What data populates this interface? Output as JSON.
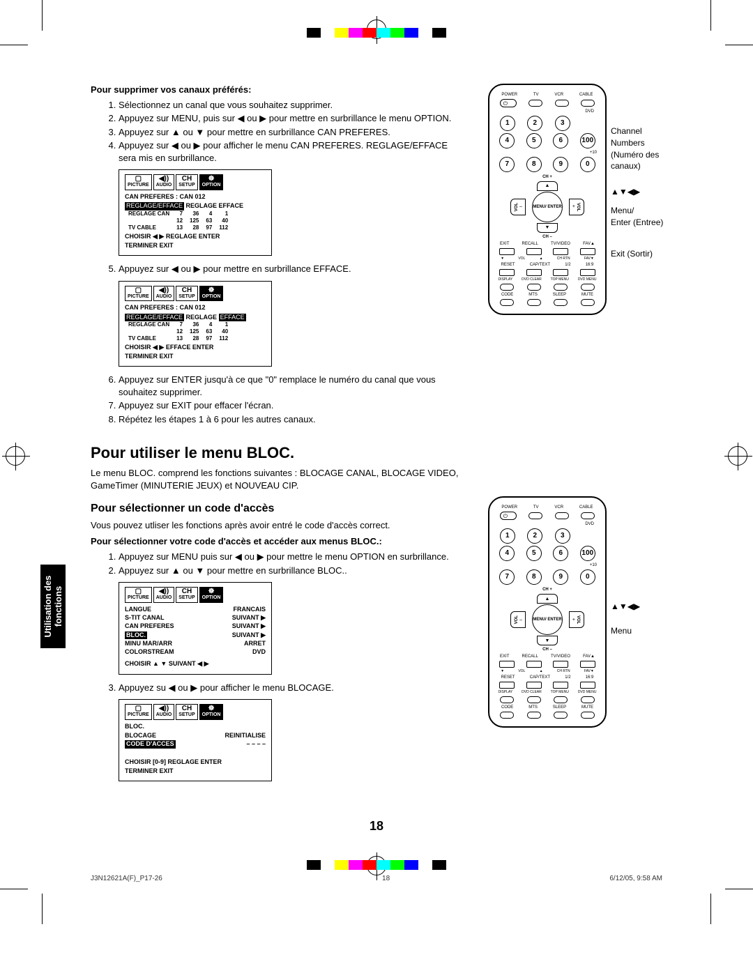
{
  "colorbar": [
    "#000000",
    "#ffffff",
    "#ffff00",
    "#ff00ff",
    "#ff0000",
    "#00ffff",
    "#00ff00",
    "#0000ff",
    "#ffffff",
    "#000000"
  ],
  "section1": {
    "heading": "Pour supprimer vos canaux préférés:",
    "steps": [
      "Sélectionnez un canal que vous souhaitez supprimer.",
      "Appuyez sur MENU, puis sur ◀ ou ▶ pour mettre en surbrillance le menu OPTION.",
      "Appuyez sur ▲ ou ▼ pour mettre en surbrillance CAN PREFERES.",
      "Appuyez sur ◀ ou ▶ pour afficher le menu CAN PREFERES. REGLAGE/EFFACE sera mis en surbrillance."
    ],
    "step5": "Appuyez sur ◀ ou ▶ pour mettre en surbrillance EFFACE.",
    "steps6_8": [
      "Appuyez sur ENTER jusqu'à ce que \"0\" remplace le numéro du canal que vous souhaitez supprimer.",
      "Appuyez sur EXIT pour effacer l'écran.",
      "Répétez les étapes 1 à 6 pour les autres canaux."
    ]
  },
  "osd1": {
    "tabs": [
      "PICTURE",
      "AUDIO",
      "SETUP",
      "OPTION"
    ],
    "active": 3,
    "title": "CAN PREFERES : CAN 012",
    "row1": "REGLAGE/EFFACE",
    "row1b": "REGLAGE  EFFACE",
    "col_labels": [
      "REGLAGE CAN",
      "",
      "TV CABLE"
    ],
    "table": [
      [
        "7",
        "36",
        "4",
        "1"
      ],
      [
        "12",
        "125",
        "63",
        "40"
      ],
      [
        "13",
        "28",
        "97",
        "112"
      ]
    ],
    "choisir": "CHOISIR   ◀ ▶   REGLAGE  ENTER",
    "terminer": "TERMINER   EXIT"
  },
  "osd2": {
    "tabs": [
      "PICTURE",
      "AUDIO",
      "SETUP",
      "OPTION"
    ],
    "active": 3,
    "title": "CAN PREFERES : CAN 012",
    "row1": "REGLAGE/EFFACE",
    "row1b": "REGLAGE  EFFACE",
    "col_labels": [
      "REGLAGE CAN",
      "",
      "TV CABLE"
    ],
    "table": [
      [
        "7",
        "36",
        "4",
        "1"
      ],
      [
        "12",
        "125",
        "63",
        "40"
      ],
      [
        "13",
        "28",
        "97",
        "112"
      ]
    ],
    "choisir": "CHOISIR   ◀ ▶   EFFACE   ENTER",
    "terminer": "TERMINER   EXIT"
  },
  "section2": {
    "h2": "Pour utiliser le menu BLOC.",
    "intro": "Le menu BLOC. comprend les fonctions suivantes : BLOCAGE CANAL, BLOCAGE VIDEO, GameTimer (MINUTERIE JEUX) et NOUVEAU CIP.",
    "h3": "Pour sélectionner un code d'accès",
    "intro2": "Vous pouvez utliser les fonctions après avoir entré le code d'accès correct.",
    "bold": "Pour sélectionner votre code d'accès et accéder aux menus BLOC.:",
    "steps": [
      "Appuyez sur MENU puis sur ◀ ou ▶ pour mettre le menu OPTION en surbrillance.",
      "Appuyez sur ▲ ou ▼ pour mettre en surbrillance BLOC.."
    ],
    "step3": "Appuyez su ◀ ou ▶ pour afficher le menu BLOCAGE."
  },
  "osd3": {
    "tabs": [
      "PICTURE",
      "AUDIO",
      "SETUP",
      "OPTION"
    ],
    "active": 3,
    "rows": [
      [
        "LANGUE",
        "FRANCAIS"
      ],
      [
        "S-TIT CANAL",
        "SUIVANT ▶"
      ],
      [
        "CAN PREFERES",
        "SUIVANT ▶"
      ],
      [
        "BLOC.",
        "SUIVANT ▶"
      ],
      [
        "MINU MAR/ARR",
        "ARRET"
      ],
      [
        "COLORSTREAM",
        "DVD"
      ]
    ],
    "highlighted_row": 3,
    "choisir": "CHOISIR   ▲ ▼   SUIVANT   ◀ ▶"
  },
  "osd4": {
    "tabs": [
      "PICTURE",
      "AUDIO",
      "SETUP",
      "OPTION"
    ],
    "active": 3,
    "title": "BLOC.",
    "rows": [
      [
        "BLOCAGE",
        "REINITIALISE"
      ],
      [
        "CODE D'ACCES",
        "– – – –"
      ]
    ],
    "highlighted_row": 1,
    "choisir": "CHOISIR   [0-9]   REGLAGE  ENTER",
    "terminer": "TERMINER EXIT"
  },
  "remote1": {
    "annotations": [
      {
        "label": "Channel Numbers",
        "sub": "(Numéro des canaux)"
      },
      {
        "label": "▲▼◀▶",
        "sub": ""
      },
      {
        "label": "Menu/",
        "sub": "Enter (Entree)"
      },
      {
        "label": "Exit (Sortir)",
        "sub": ""
      }
    ]
  },
  "remote2": {
    "annotations": [
      {
        "label": "▲▼◀▶",
        "sub": ""
      },
      {
        "label": "Menu",
        "sub": ""
      }
    ]
  },
  "remote_labels": {
    "top_row": [
      "POWER",
      "TV",
      "VCR",
      "CABLE"
    ],
    "dvd": "DVD",
    "plus10": "+10",
    "ch_plus": "CH +",
    "ch_minus": "CH –",
    "vol": "VOL",
    "menu_enter": "MENU/\nENTER",
    "mid_row": [
      "EXIT",
      "RECALL",
      "TV/VIDEO",
      "FAV▲"
    ],
    "mid_row2": [
      "▼",
      "VOL",
      "▲",
      "CH RTN",
      "FAV▼"
    ],
    "mid_row3": [
      "RESET",
      "CAP/TEXT",
      "1/2",
      "16:9"
    ],
    "mid_row4": [
      "DISPLAY",
      "DVD CLEAR",
      "TOP MENU",
      "DVD MENU"
    ],
    "bottom_row": [
      "CODE",
      "MTS",
      "SLEEP",
      "MUTE"
    ],
    "num100": "100"
  },
  "sidetab": {
    "l1": "Utilisation des",
    "l2": "fonctions"
  },
  "page_number": "18",
  "footer": {
    "left": "J3N12621A(F)_P17-26",
    "mid": "18",
    "right": "6/12/05, 9:58 AM"
  }
}
